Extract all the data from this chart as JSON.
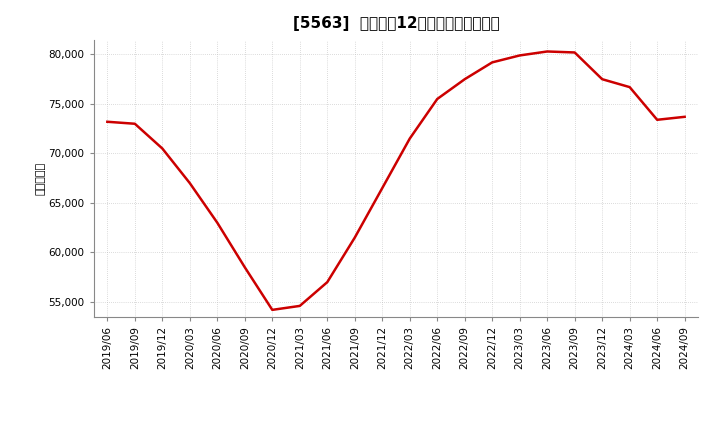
{
  "title": "[5563]  売上高の12か月移動合計の推移",
  "ylabel": "（百万円）",
  "line_color": "#cc0000",
  "background_color": "#ffffff",
  "plot_bg_color": "#ffffff",
  "grid_color": "#bbbbbb",
  "dates": [
    "2019/06",
    "2019/09",
    "2019/12",
    "2020/03",
    "2020/06",
    "2020/09",
    "2020/12",
    "2021/03",
    "2021/06",
    "2021/09",
    "2021/12",
    "2022/03",
    "2022/06",
    "2022/09",
    "2022/12",
    "2023/03",
    "2023/06",
    "2023/09",
    "2023/12",
    "2024/03",
    "2024/06",
    "2024/09"
  ],
  "values": [
    73200,
    73000,
    70500,
    67000,
    63000,
    58500,
    54200,
    54600,
    57000,
    61500,
    66500,
    71500,
    75500,
    77500,
    79200,
    79900,
    80300,
    80200,
    77500,
    76700,
    73400,
    73700
  ],
  "yticks": [
    55000,
    60000,
    65000,
    70000,
    75000,
    80000
  ],
  "ylim": [
    53500,
    81500
  ],
  "title_fontsize": 11,
  "axis_fontsize": 7.5,
  "ylabel_fontsize": 8,
  "linewidth": 1.8
}
